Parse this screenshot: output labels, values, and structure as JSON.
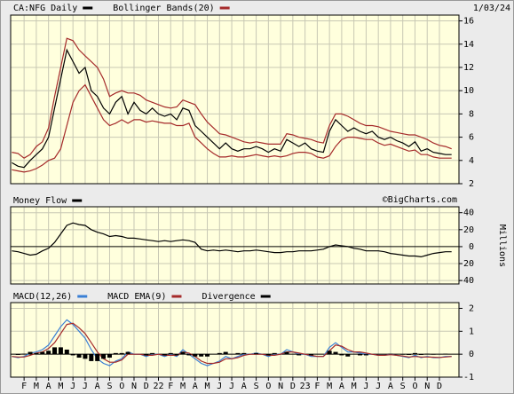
{
  "chart_data": [
    {
      "type": "line",
      "date": "1/03/24",
      "x": [
        0,
        0.5,
        1,
        1.5,
        2,
        2.5,
        3,
        3.5,
        4,
        4.5,
        5,
        5.5,
        6,
        6.5,
        7,
        7.5,
        8,
        8.5,
        9,
        9.5,
        10,
        10.5,
        11,
        11.5,
        12,
        12.5,
        13,
        13.5,
        14,
        14.5,
        15,
        15.5,
        16,
        16.5,
        17,
        17.5,
        18,
        18.5,
        19,
        19.5,
        20,
        20.5,
        21,
        21.5,
        22,
        22.5,
        23,
        23.5,
        24,
        24.5,
        25,
        25.5,
        26,
        26.5,
        27,
        27.5,
        28,
        28.5,
        29,
        29.5,
        30,
        30.5,
        31,
        31.5,
        32,
        32.5,
        33,
        33.5,
        34,
        34.5,
        35,
        35.5,
        36
      ],
      "xlim": [
        -0.1,
        36.6
      ],
      "ylim": [
        2,
        16.5
      ],
      "yticks": [
        2,
        4,
        6,
        8,
        10,
        12,
        14,
        16
      ],
      "grid": true,
      "series": [
        {
          "name": "CA:NFG Daily",
          "color": "#000000",
          "values": [
            3.8,
            3.5,
            3.4,
            4.0,
            4.5,
            5.0,
            6.0,
            8.5,
            11.0,
            13.5,
            12.5,
            11.5,
            12.0,
            10.0,
            9.5,
            8.5,
            8.0,
            9.0,
            9.5,
            8.0,
            9.0,
            8.3,
            8.0,
            8.5,
            8.0,
            7.8,
            8.0,
            7.5,
            8.5,
            8.3,
            7.0,
            6.5,
            6.0,
            5.5,
            5.0,
            5.5,
            5.0,
            4.8,
            5.0,
            5.0,
            5.2,
            5.0,
            4.7,
            5.0,
            4.8,
            5.8,
            5.5,
            5.2,
            5.5,
            5.0,
            4.8,
            4.7,
            6.5,
            7.5,
            7.0,
            6.5,
            6.8,
            6.5,
            6.3,
            6.5,
            6.0,
            5.8,
            6.0,
            5.7,
            5.5,
            5.2,
            5.6,
            4.8,
            5.0,
            4.7,
            4.6,
            4.5,
            4.5
          ]
        }
      ],
      "bands": {
        "name": "Bollinger Bands(20)",
        "color": "#a52a2a",
        "upper": [
          4.7,
          4.6,
          4.2,
          4.5,
          5.2,
          5.6,
          6.8,
          9.5,
          12.0,
          14.5,
          14.3,
          13.5,
          13.0,
          12.5,
          12.0,
          11.0,
          9.5,
          9.8,
          10.0,
          9.8,
          9.8,
          9.6,
          9.2,
          9.0,
          8.8,
          8.6,
          8.5,
          8.6,
          9.2,
          9.0,
          8.8,
          8.0,
          7.3,
          6.8,
          6.3,
          6.2,
          6.0,
          5.8,
          5.6,
          5.5,
          5.6,
          5.5,
          5.4,
          5.4,
          5.4,
          6.3,
          6.2,
          6.0,
          5.9,
          5.8,
          5.6,
          5.5,
          7.0,
          8.0,
          8.0,
          7.8,
          7.5,
          7.2,
          7.0,
          7.0,
          6.9,
          6.7,
          6.5,
          6.4,
          6.3,
          6.2,
          6.2,
          6.0,
          5.8,
          5.5,
          5.3,
          5.2,
          5.0
        ],
        "lower": [
          3.2,
          3.1,
          3.0,
          3.1,
          3.3,
          3.6,
          4.0,
          4.2,
          5.0,
          7.0,
          9.0,
          10.0,
          10.5,
          9.5,
          8.5,
          7.5,
          7.0,
          7.2,
          7.5,
          7.2,
          7.5,
          7.5,
          7.3,
          7.4,
          7.3,
          7.2,
          7.2,
          7.0,
          7.0,
          7.2,
          6.0,
          5.5,
          5.0,
          4.6,
          4.3,
          4.3,
          4.4,
          4.3,
          4.3,
          4.4,
          4.5,
          4.4,
          4.3,
          4.4,
          4.3,
          4.4,
          4.6,
          4.7,
          4.7,
          4.6,
          4.3,
          4.2,
          4.4,
          5.2,
          5.8,
          6.0,
          6.0,
          5.9,
          5.8,
          5.8,
          5.5,
          5.3,
          5.4,
          5.2,
          5.0,
          4.8,
          4.9,
          4.5,
          4.5,
          4.3,
          4.2,
          4.2,
          4.2
        ]
      }
    },
    {
      "type": "line",
      "annotation": "©BigCharts.com",
      "ylabel": "Millions",
      "x": [
        0,
        0.5,
        1,
        1.5,
        2,
        2.5,
        3,
        3.5,
        4,
        4.5,
        5,
        5.5,
        6,
        6.5,
        7,
        7.5,
        8,
        8.5,
        9,
        9.5,
        10,
        10.5,
        11,
        11.5,
        12,
        12.5,
        13,
        13.5,
        14,
        14.5,
        15,
        15.5,
        16,
        16.5,
        17,
        17.5,
        18,
        18.5,
        19,
        19.5,
        20,
        20.5,
        21,
        21.5,
        22,
        22.5,
        23,
        23.5,
        24,
        24.5,
        25,
        25.5,
        26,
        26.5,
        27,
        27.5,
        28,
        28.5,
        29,
        29.5,
        30,
        30.5,
        31,
        31.5,
        32,
        32.5,
        33,
        33.5,
        34,
        34.5,
        35,
        35.5,
        36
      ],
      "xlim": [
        -0.1,
        36.6
      ],
      "ylim": [
        -44,
        47
      ],
      "yticks": [
        -40,
        -20,
        0,
        20,
        40
      ],
      "grid": true,
      "series": [
        {
          "name": "Money Flow",
          "color": "#000000",
          "values": [
            -5,
            -6,
            -8,
            -10,
            -9,
            -5,
            -2,
            5,
            15,
            25,
            28,
            26,
            25,
            20,
            17,
            15,
            12,
            13,
            12,
            10,
            10,
            9,
            8,
            7,
            6,
            7,
            6,
            7,
            8,
            7,
            5,
            -3,
            -5,
            -4,
            -5,
            -4,
            -5,
            -6,
            -5,
            -5,
            -4,
            -5,
            -6,
            -7,
            -7,
            -6,
            -6,
            -5,
            -5,
            -5,
            -4,
            -3,
            0,
            2,
            1,
            0,
            -2,
            -3,
            -5,
            -5,
            -5,
            -6,
            -8,
            -9,
            -10,
            -11,
            -11,
            -12,
            -10,
            -8,
            -7,
            -6,
            -6
          ]
        }
      ]
    },
    {
      "type": "line",
      "x": [
        0,
        0.5,
        1,
        1.5,
        2,
        2.5,
        3,
        3.5,
        4,
        4.5,
        5,
        5.5,
        6,
        6.5,
        7,
        7.5,
        8,
        8.5,
        9,
        9.5,
        10,
        10.5,
        11,
        11.5,
        12,
        12.5,
        13,
        13.5,
        14,
        14.5,
        15,
        15.5,
        16,
        16.5,
        17,
        17.5,
        18,
        18.5,
        19,
        19.5,
        20,
        20.5,
        21,
        21.5,
        22,
        22.5,
        23,
        23.5,
        24,
        24.5,
        25,
        25.5,
        26,
        26.5,
        27,
        27.5,
        28,
        28.5,
        29,
        29.5,
        30,
        30.5,
        31,
        31.5,
        32,
        32.5,
        33,
        33.5,
        34,
        34.5,
        35,
        35.5,
        36
      ],
      "xlim": [
        -0.1,
        36.6
      ],
      "ylim": [
        -1,
        2.25
      ],
      "yticks": [
        -1,
        0,
        1,
        2
      ],
      "grid": true,
      "xticks": [
        {
          "value": 1,
          "label": "F"
        },
        {
          "value": 2,
          "label": "M"
        },
        {
          "value": 3,
          "label": "A"
        },
        {
          "value": 4,
          "label": "M"
        },
        {
          "value": 5,
          "label": "J"
        },
        {
          "value": 6,
          "label": "J"
        },
        {
          "value": 7,
          "label": "A"
        },
        {
          "value": 8,
          "label": "S"
        },
        {
          "value": 9,
          "label": "O"
        },
        {
          "value": 10,
          "label": "N"
        },
        {
          "value": 11,
          "label": "D"
        },
        {
          "value": 12,
          "label": "22"
        },
        {
          "value": 13,
          "label": "F"
        },
        {
          "value": 14,
          "label": "M"
        },
        {
          "value": 15,
          "label": "A"
        },
        {
          "value": 16,
          "label": "M"
        },
        {
          "value": 17,
          "label": "J"
        },
        {
          "value": 18,
          "label": "J"
        },
        {
          "value": 19,
          "label": "A"
        },
        {
          "value": 20,
          "label": "S"
        },
        {
          "value": 21,
          "label": "O"
        },
        {
          "value": 22,
          "label": "N"
        },
        {
          "value": 23,
          "label": "D"
        },
        {
          "value": 24,
          "label": "23"
        },
        {
          "value": 25,
          "label": "F"
        },
        {
          "value": 26,
          "label": "M"
        },
        {
          "value": 27,
          "label": "A"
        },
        {
          "value": 28,
          "label": "M"
        },
        {
          "value": 29,
          "label": "J"
        },
        {
          "value": 30,
          "label": "J"
        },
        {
          "value": 31,
          "label": "A"
        },
        {
          "value": 32,
          "label": "S"
        },
        {
          "value": 33,
          "label": "O"
        },
        {
          "value": 34,
          "label": "N"
        },
        {
          "value": 35,
          "label": "D"
        }
      ],
      "series": [
        {
          "name": "MACD(12,26)",
          "color": "#3a7fd5",
          "values": [
            -0.1,
            -0.15,
            -0.1,
            0.05,
            0.1,
            0.2,
            0.4,
            0.8,
            1.2,
            1.5,
            1.3,
            1.0,
            0.7,
            0.2,
            -0.2,
            -0.4,
            -0.5,
            -0.3,
            -0.2,
            0.1,
            0.0,
            0.0,
            -0.1,
            0.0,
            0.0,
            -0.1,
            0.0,
            -0.1,
            0.2,
            0.0,
            -0.2,
            -0.4,
            -0.5,
            -0.4,
            -0.3,
            -0.1,
            -0.2,
            -0.1,
            0.0,
            0.0,
            0.05,
            0.0,
            -0.1,
            0.0,
            0.0,
            0.2,
            0.1,
            0.0,
            0.0,
            -0.1,
            -0.1,
            -0.1,
            0.3,
            0.5,
            0.3,
            0.1,
            0.1,
            0.05,
            0.0,
            0.0,
            -0.05,
            -0.05,
            0.0,
            -0.05,
            -0.1,
            -0.15,
            -0.05,
            -0.15,
            -0.1,
            -0.15,
            -0.15,
            -0.1,
            -0.1
          ]
        },
        {
          "name": "MACD EMA(9)",
          "color": "#a52a2a",
          "values": [
            -0.1,
            -0.12,
            -0.12,
            -0.05,
            0.05,
            0.1,
            0.25,
            0.5,
            0.9,
            1.3,
            1.35,
            1.15,
            0.9,
            0.5,
            0.1,
            -0.2,
            -0.35,
            -0.35,
            -0.25,
            0.0,
            0.0,
            0.0,
            -0.05,
            -0.05,
            0.0,
            -0.05,
            -0.05,
            -0.05,
            0.1,
            0.05,
            -0.1,
            -0.3,
            -0.4,
            -0.4,
            -0.35,
            -0.2,
            -0.2,
            -0.15,
            -0.05,
            0.0,
            0.0,
            0.0,
            -0.05,
            -0.05,
            0.0,
            0.1,
            0.1,
            0.05,
            0.0,
            -0.05,
            -0.1,
            -0.1,
            0.15,
            0.4,
            0.35,
            0.2,
            0.1,
            0.1,
            0.05,
            0.0,
            -0.05,
            -0.05,
            -0.02,
            -0.05,
            -0.08,
            -0.12,
            -0.1,
            -0.12,
            -0.12,
            -0.13,
            -0.14,
            -0.12,
            -0.1
          ]
        },
        {
          "name": "Divergence",
          "color": "#000000",
          "type": "bar",
          "values": [
            0,
            -0.03,
            0.02,
            0.1,
            0.05,
            0.1,
            0.15,
            0.3,
            0.3,
            0.2,
            -0.05,
            -0.15,
            -0.2,
            -0.3,
            -0.3,
            -0.2,
            -0.15,
            0.05,
            0.05,
            0.1,
            0,
            0,
            -0.05,
            0.05,
            0,
            -0.05,
            0.05,
            -0.05,
            0.1,
            -0.05,
            -0.1,
            -0.1,
            -0.1,
            0,
            0.05,
            0.1,
            0,
            0.05,
            0.05,
            0,
            0.05,
            0,
            -0.05,
            0.05,
            0,
            0.1,
            0,
            -0.05,
            0,
            -0.05,
            0,
            0,
            0.15,
            0.1,
            -0.05,
            -0.1,
            0,
            -0.05,
            -0.05,
            0,
            0,
            0,
            0.02,
            0,
            -0.02,
            -0.03,
            0.05,
            -0.03,
            0.02,
            -0.02,
            -0.01,
            0.02,
            0
          ]
        }
      ]
    }
  ]
}
